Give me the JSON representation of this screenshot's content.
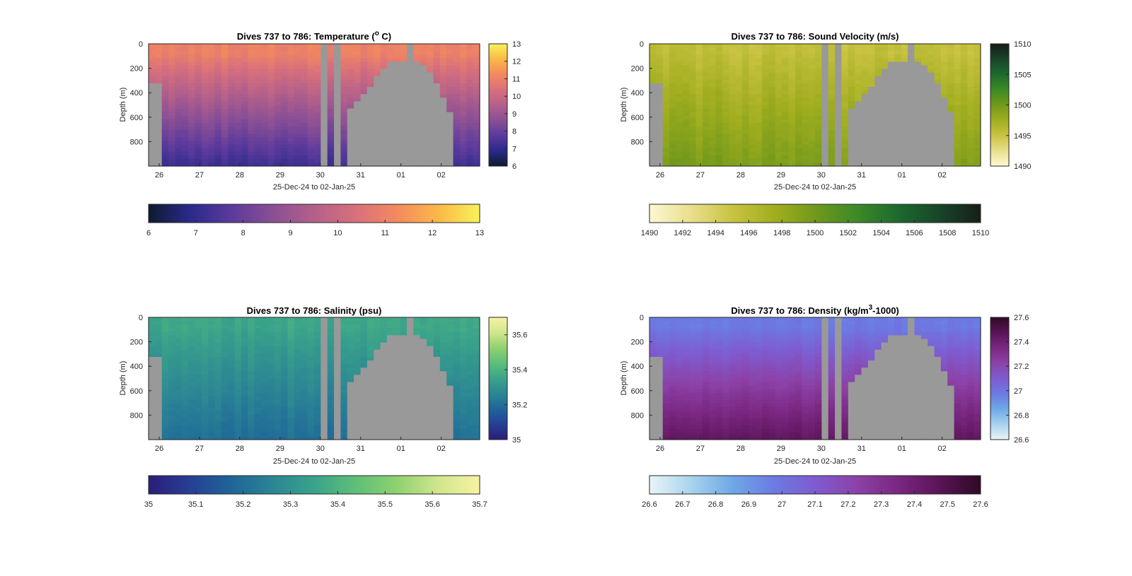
{
  "figure_background": "#ffffff",
  "missing_color": "#999999",
  "chart_data": [
    {
      "type": "heatmap",
      "id": "temp",
      "title_main": "Dives 737 to 786: Temperature (",
      "title_sup": "o",
      "title_tail": " C)",
      "xlabel": "25-Dec-24 to 02-Jan-25",
      "ylabel": "Depth (m)",
      "xticks": [
        "26",
        "27",
        "28",
        "29",
        "30",
        "31",
        "01",
        "02"
      ],
      "yticks": [
        "0",
        "200",
        "400",
        "600",
        "800"
      ],
      "ylim": [
        0,
        1000
      ],
      "clim": [
        6,
        13
      ],
      "colorbar_right_ticks": [
        "6",
        "7",
        "8",
        "9",
        "10",
        "11",
        "12",
        "13"
      ],
      "colorbar_bottom_ticks": [
        "6",
        "7",
        "8",
        "9",
        "10",
        "11",
        "12",
        "13"
      ],
      "colormap": [
        "#0d1b2e",
        "#2a2a8a",
        "#5b3a9c",
        "#8a4f95",
        "#b4608a",
        "#d8707c",
        "#f4895e",
        "#fbb848",
        "#f7f25a"
      ],
      "profile": {
        "surface": 11.0,
        "deep": 7.2,
        "mix_depth": 300
      },
      "noise": 0.35
    },
    {
      "type": "heatmap",
      "id": "sv",
      "title_main": "Dives 737 to 786: Sound Velocity (m/s)",
      "title_sup": "",
      "title_tail": "",
      "xlabel": "25-Dec-24 to 02-Jan-25",
      "ylabel": "Depth (m)",
      "xticks": [
        "26",
        "27",
        "28",
        "29",
        "30",
        "31",
        "01",
        "02"
      ],
      "yticks": [
        "0",
        "200",
        "400",
        "600",
        "800"
      ],
      "ylim": [
        0,
        1000
      ],
      "clim": [
        1490,
        1510
      ],
      "colorbar_right_ticks": [
        "1490",
        "1495",
        "1500",
        "1505",
        "1510"
      ],
      "colorbar_bottom_ticks": [
        "1490",
        "1492",
        "1494",
        "1496",
        "1498",
        "1500",
        "1502",
        "1504",
        "1506",
        "1508",
        "1510"
      ],
      "colormap": [
        "#fdf7d4",
        "#e9df8c",
        "#c9c341",
        "#a1ae1f",
        "#72991b",
        "#3c8a26",
        "#1d6a2e",
        "#184529",
        "#161f17"
      ],
      "profile": {
        "surface": 1495.5,
        "deep": 1499.5,
        "mix_depth": 250
      },
      "noise": 1.2
    },
    {
      "type": "heatmap",
      "id": "sal",
      "title_main": "Dives 737 to 786: Salinity (psu)",
      "title_sup": "",
      "title_tail": "",
      "xlabel": "25-Dec-24 to 02-Jan-25",
      "ylabel": "Depth (m)",
      "xticks": [
        "26",
        "27",
        "28",
        "29",
        "30",
        "31",
        "01",
        "02"
      ],
      "yticks": [
        "0",
        "200",
        "400",
        "600",
        "800"
      ],
      "ylim": [
        0,
        1000
      ],
      "clim": [
        35,
        35.7
      ],
      "colorbar_right_ticks": [
        "35",
        "35.2",
        "35.4",
        "35.6"
      ],
      "colorbar_bottom_ticks": [
        "35",
        "35.1",
        "35.2",
        "35.3",
        "35.4",
        "35.5",
        "35.6",
        "35.7"
      ],
      "colormap": [
        "#2b1d78",
        "#263f94",
        "#1f6599",
        "#2b8694",
        "#3aa38a",
        "#5dbf78",
        "#8fd170",
        "#d1e68c",
        "#f7f3a3"
      ],
      "profile": {
        "surface": 35.36,
        "deep": 35.2,
        "mix_depth": 300
      },
      "noise": 0.035
    },
    {
      "type": "heatmap",
      "id": "dens",
      "title_main": "Dives 737 to 786: Density (kg/m",
      "title_sup": "3",
      "title_tail": "-1000)",
      "xlabel": "25-Dec-24 to 02-Jan-25",
      "ylabel": "Depth (m)",
      "xticks": [
        "26",
        "27",
        "28",
        "29",
        "30",
        "31",
        "01",
        "02"
      ],
      "yticks": [
        "0",
        "200",
        "400",
        "600",
        "800"
      ],
      "ylim": [
        0,
        1000
      ],
      "clim": [
        26.6,
        27.6
      ],
      "colorbar_right_ticks": [
        "26.6",
        "26.8",
        "27",
        "27.2",
        "27.4",
        "27.6"
      ],
      "colorbar_bottom_ticks": [
        "26.6",
        "26.7",
        "26.8",
        "26.9",
        "27",
        "27.1",
        "27.2",
        "27.3",
        "27.4",
        "27.5",
        "27.6"
      ],
      "colormap": [
        "#e9f5f6",
        "#a9d3ee",
        "#6ea8e6",
        "#6c7ae3",
        "#7e5cd0",
        "#8c42a8",
        "#7a2781",
        "#5a1457",
        "#2e0a24"
      ],
      "profile": {
        "surface": 26.98,
        "deep": 27.45,
        "mix_depth": 300
      },
      "noise": 0.04
    }
  ]
}
